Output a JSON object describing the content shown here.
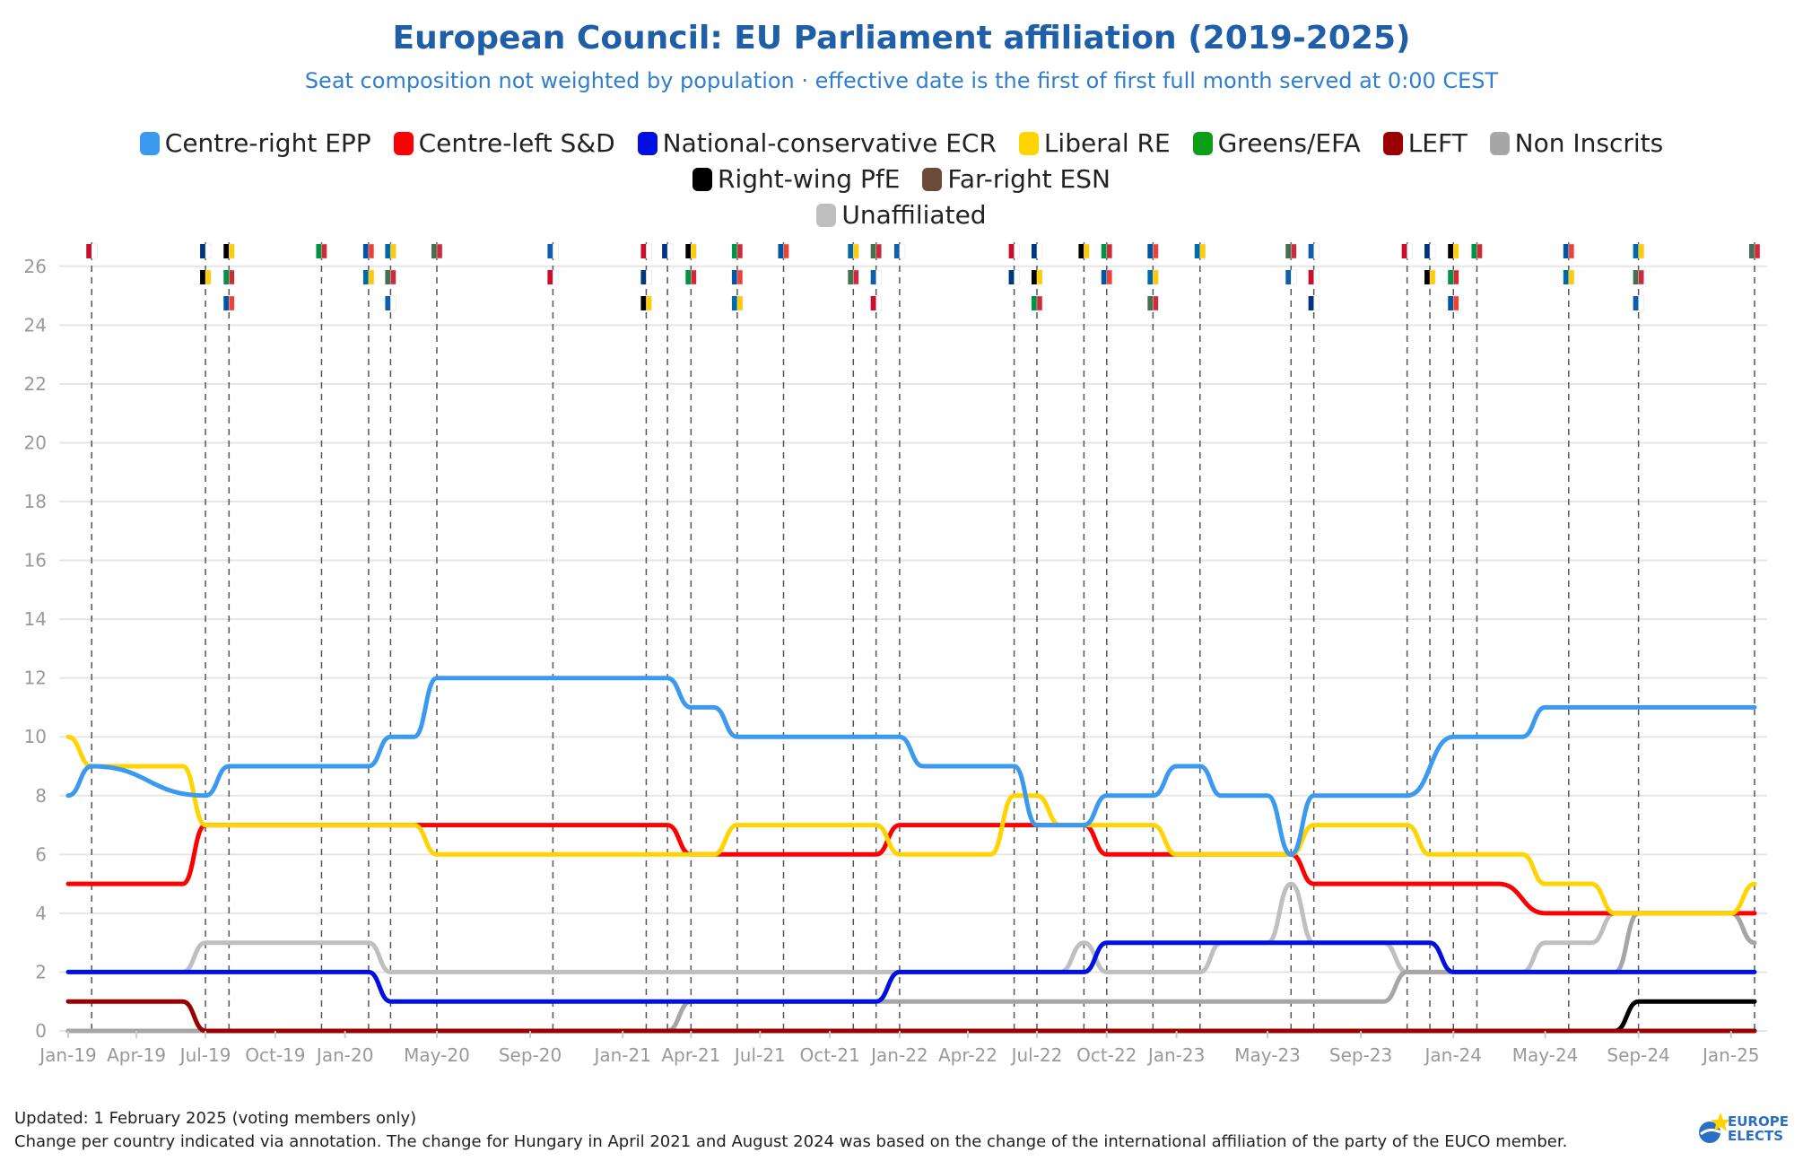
{
  "title": "European Council: EU Parliament affiliation (2019-2025)",
  "subtitle": "Seat composition not weighted by population · effective date is the first of first full month served at 0:00 CEST",
  "footnote_updated": "Updated: 1 February 2025 (voting members only)",
  "footnote_note": "Change per country indicated via annotation. The change for Hungary in April 2021 and August 2024 was based on the change of the international affiliation of the party of the EUCO member.",
  "logo_text_1": "EUROPE",
  "logo_text_2": "ELECTS",
  "legend": [
    {
      "label": "Centre-right EPP",
      "color": "#3b9af0"
    },
    {
      "label": "Centre-left S&D",
      "color": "#ff0000"
    },
    {
      "label": "National-conservative ECR",
      "color": "#0010e0"
    },
    {
      "label": "Liberal RE",
      "color": "#ffd400"
    },
    {
      "label": "Greens/EFA",
      "color": "#0b9e16"
    },
    {
      "label": "LEFT",
      "color": "#9b0000"
    },
    {
      "label": "Non Inscrits",
      "color": "#a6a6a6"
    },
    {
      "label": "Right-wing PfE",
      "color": "#000000"
    },
    {
      "label": "Far-right ESN",
      "color": "#6b4a3a"
    },
    {
      "label": "Unaffiliated",
      "color": "#bfbfbf"
    }
  ],
  "chart_data": {
    "type": "line",
    "xlim": [
      "2019-01-01",
      "2025-02-01"
    ],
    "ylim": [
      0,
      27
    ],
    "ticks_x": [
      "Jan-19",
      "Apr-19",
      "Jul-19",
      "Oct-19",
      "Jan-20",
      "May-20",
      "Sep-20",
      "Jan-21",
      "Apr-21",
      "Jul-21",
      "Oct-21",
      "Jan-22",
      "Apr-22",
      "Jul-22",
      "Oct-22",
      "Jan-23",
      "May-23",
      "Sep-23",
      "Jan-24",
      "May-24",
      "Sep-24",
      "Jan-25"
    ],
    "ticks_x_dates": [
      "2019-01-01",
      "2019-04-01",
      "2019-07-01",
      "2019-10-01",
      "2020-01-01",
      "2020-05-01",
      "2020-09-01",
      "2021-01-01",
      "2021-04-01",
      "2021-07-01",
      "2021-10-01",
      "2022-01-01",
      "2022-04-01",
      "2022-07-01",
      "2022-10-01",
      "2023-01-01",
      "2023-05-01",
      "2023-09-01",
      "2024-01-01",
      "2024-05-01",
      "2024-09-01",
      "2025-01-01"
    ],
    "ticks_y": [
      0,
      2,
      4,
      6,
      8,
      10,
      12,
      14,
      16,
      18,
      20,
      22,
      24,
      26
    ],
    "grid": true,
    "event_dates": [
      "2019-02-01",
      "2019-07-01",
      "2019-08-01",
      "2019-12-01",
      "2020-02-01",
      "2020-03-01",
      "2020-05-01",
      "2020-10-01",
      "2021-02-01",
      "2021-03-01",
      "2021-04-01",
      "2021-06-01",
      "2021-08-01",
      "2021-11-01",
      "2021-12-01",
      "2022-01-01",
      "2022-06-01",
      "2022-07-01",
      "2022-09-01",
      "2022-10-01",
      "2022-12-01",
      "2023-02-01",
      "2023-06-01",
      "2023-07-01",
      "2023-11-01",
      "2023-12-01",
      "2024-01-01",
      "2024-02-01",
      "2024-06-01",
      "2024-09-01",
      "2025-02-01"
    ],
    "series": [
      {
        "name": "Centre-right EPP",
        "color": "#3b9af0",
        "points": [
          [
            "2019-01-01",
            8
          ],
          [
            "2019-02-01",
            9
          ],
          [
            "2019-07-01",
            8
          ],
          [
            "2019-08-01",
            9
          ],
          [
            "2020-02-01",
            9
          ],
          [
            "2020-03-01",
            10
          ],
          [
            "2020-04-01",
            10
          ],
          [
            "2020-05-01",
            12
          ],
          [
            "2021-03-01",
            12
          ],
          [
            "2021-04-01",
            11
          ],
          [
            "2021-05-01",
            11
          ],
          [
            "2021-06-01",
            10
          ],
          [
            "2022-01-01",
            10
          ],
          [
            "2022-02-01",
            9
          ],
          [
            "2022-06-01",
            9
          ],
          [
            "2022-07-01",
            7
          ],
          [
            "2022-09-01",
            7
          ],
          [
            "2022-10-01",
            8
          ],
          [
            "2022-12-01",
            8
          ],
          [
            "2023-01-01",
            9
          ],
          [
            "2023-02-01",
            9
          ],
          [
            "2023-03-01",
            8
          ],
          [
            "2023-05-01",
            8
          ],
          [
            "2023-06-01",
            6
          ],
          [
            "2023-07-01",
            8
          ],
          [
            "2023-11-01",
            8
          ],
          [
            "2024-01-01",
            10
          ],
          [
            "2024-03-01",
            10
          ],
          [
            "2024-04-01",
            10
          ],
          [
            "2024-05-01",
            11
          ],
          [
            "2025-02-01",
            11
          ]
        ]
      },
      {
        "name": "Centre-left S&D",
        "color": "#ff0000",
        "points": [
          [
            "2019-01-01",
            5
          ],
          [
            "2019-06-01",
            5
          ],
          [
            "2019-07-01",
            7
          ],
          [
            "2021-03-01",
            7
          ],
          [
            "2021-04-01",
            6
          ],
          [
            "2021-12-01",
            6
          ],
          [
            "2022-01-01",
            7
          ],
          [
            "2022-09-01",
            7
          ],
          [
            "2022-10-01",
            6
          ],
          [
            "2022-12-01",
            6
          ],
          [
            "2023-01-01",
            6
          ],
          [
            "2023-06-01",
            6
          ],
          [
            "2023-07-01",
            5
          ],
          [
            "2024-03-01",
            5
          ],
          [
            "2024-05-01",
            4
          ],
          [
            "2025-02-01",
            4
          ]
        ]
      },
      {
        "name": "National-conservative ECR",
        "color": "#0010e0",
        "points": [
          [
            "2019-01-01",
            2
          ],
          [
            "2020-02-01",
            2
          ],
          [
            "2020-03-01",
            1
          ],
          [
            "2021-04-01",
            1
          ],
          [
            "2021-12-01",
            1
          ],
          [
            "2022-01-01",
            2
          ],
          [
            "2022-09-01",
            2
          ],
          [
            "2022-10-01",
            3
          ],
          [
            "2023-11-01",
            3
          ],
          [
            "2023-12-01",
            3
          ],
          [
            "2024-01-01",
            2
          ],
          [
            "2025-02-01",
            2
          ]
        ]
      },
      {
        "name": "Liberal RE",
        "color": "#ffd400",
        "points": [
          [
            "2019-01-01",
            10
          ],
          [
            "2019-02-01",
            9
          ],
          [
            "2019-06-01",
            9
          ],
          [
            "2019-07-01",
            7
          ],
          [
            "2020-04-01",
            7
          ],
          [
            "2020-05-01",
            6
          ],
          [
            "2021-05-01",
            6
          ],
          [
            "2021-06-01",
            7
          ],
          [
            "2021-12-01",
            7
          ],
          [
            "2022-01-01",
            6
          ],
          [
            "2022-05-01",
            6
          ],
          [
            "2022-06-01",
            8
          ],
          [
            "2022-07-01",
            8
          ],
          [
            "2022-08-01",
            7
          ],
          [
            "2022-12-01",
            7
          ],
          [
            "2023-01-01",
            6
          ],
          [
            "2023-06-01",
            6
          ],
          [
            "2023-07-01",
            7
          ],
          [
            "2023-11-01",
            7
          ],
          [
            "2023-12-01",
            6
          ],
          [
            "2024-04-01",
            6
          ],
          [
            "2024-05-01",
            5
          ],
          [
            "2024-07-01",
            5
          ],
          [
            "2024-08-01",
            4
          ],
          [
            "2025-01-01",
            4
          ],
          [
            "2025-02-01",
            5
          ]
        ]
      },
      {
        "name": "LEFT",
        "color": "#9b0000",
        "points": [
          [
            "2019-01-01",
            1
          ],
          [
            "2019-06-01",
            1
          ],
          [
            "2019-07-01",
            0
          ],
          [
            "2025-02-01",
            0
          ]
        ]
      },
      {
        "name": "Non Inscrits",
        "color": "#a6a6a6",
        "points": [
          [
            "2019-01-01",
            0
          ],
          [
            "2021-03-01",
            0
          ],
          [
            "2021-04-01",
            1
          ],
          [
            "2023-10-01",
            1
          ],
          [
            "2023-11-01",
            2
          ],
          [
            "2024-08-01",
            2
          ],
          [
            "2024-09-01",
            4
          ],
          [
            "2025-01-01",
            4
          ],
          [
            "2025-02-01",
            3
          ]
        ]
      },
      {
        "name": "Right-wing PfE",
        "color": "#000000",
        "points": [
          [
            "2019-01-01",
            0
          ],
          [
            "2024-08-01",
            0
          ],
          [
            "2024-09-01",
            1
          ],
          [
            "2025-02-01",
            1
          ]
        ]
      },
      {
        "name": "Far-right ESN",
        "color": "#6b4a3a",
        "points": [
          [
            "2024-09-01",
            0
          ],
          [
            "2025-02-01",
            0
          ]
        ]
      },
      {
        "name": "Unaffiliated",
        "color": "#bfbfbf",
        "points": [
          [
            "2019-01-01",
            2
          ],
          [
            "2019-06-01",
            2
          ],
          [
            "2019-07-01",
            3
          ],
          [
            "2020-02-01",
            3
          ],
          [
            "2020-03-01",
            2
          ],
          [
            "2022-08-01",
            2
          ],
          [
            "2022-09-01",
            3
          ],
          [
            "2022-10-01",
            2
          ],
          [
            "2023-02-01",
            2
          ],
          [
            "2023-03-01",
            3
          ],
          [
            "2023-05-01",
            3
          ],
          [
            "2023-06-01",
            5
          ],
          [
            "2023-07-01",
            3
          ],
          [
            "2023-10-01",
            3
          ],
          [
            "2023-11-01",
            2
          ],
          [
            "2024-04-01",
            2
          ],
          [
            "2024-05-01",
            3
          ],
          [
            "2024-07-01",
            3
          ],
          [
            "2024-08-01",
            4
          ],
          [
            "2025-01-01",
            4
          ],
          [
            "2025-02-01",
            3
          ]
        ]
      }
    ]
  }
}
